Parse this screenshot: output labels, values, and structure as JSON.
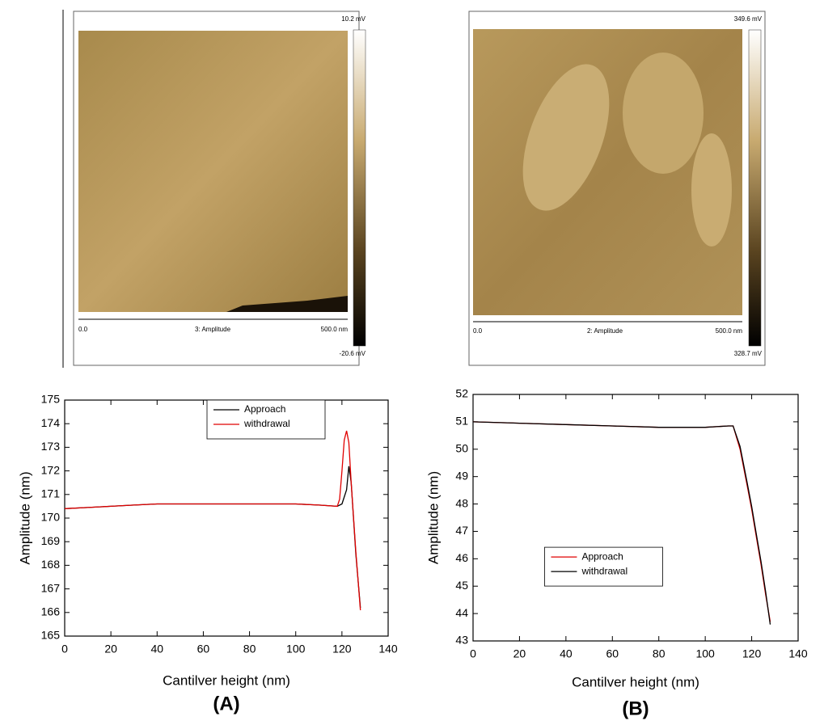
{
  "afm_images": [
    {
      "scale_max": "10.2 mV",
      "scale_min": "-20.6 mV",
      "x_start": "0.0",
      "channel": "3: Amplitude",
      "x_end": "500.0 nm"
    },
    {
      "scale_max": "349.6 mV",
      "scale_min": "328.7 mV",
      "x_start": "0.0",
      "channel": "2: Amplitude",
      "x_end": "500.0 nm"
    }
  ],
  "chart_data": [
    {
      "type": "line",
      "panel_label": "(A)",
      "xlabel": "Cantilver height (nm)",
      "ylabel": "Amplitude (nm)",
      "xlim": [
        0,
        140
      ],
      "xticks": [
        0,
        20,
        40,
        60,
        80,
        100,
        120,
        140
      ],
      "ylim": [
        165,
        175
      ],
      "yticks": [
        165,
        166,
        167,
        168,
        169,
        170,
        171,
        172,
        173,
        174,
        175
      ],
      "legend_position": "upper-center",
      "series": [
        {
          "name": "Approach",
          "color": "#000000",
          "x": [
            0,
            10,
            20,
            30,
            40,
            50,
            60,
            70,
            80,
            90,
            100,
            110,
            118,
            120,
            122,
            123,
            124,
            126,
            128
          ],
          "values": [
            170.4,
            170.45,
            170.5,
            170.55,
            170.6,
            170.6,
            170.6,
            170.6,
            170.6,
            170.6,
            170.6,
            170.55,
            170.5,
            170.6,
            171.2,
            172.2,
            171.5,
            168.5,
            166.2
          ]
        },
        {
          "name": "withdrawal",
          "color": "#e00000",
          "x": [
            0,
            10,
            20,
            30,
            40,
            50,
            60,
            70,
            80,
            90,
            100,
            110,
            118,
            119,
            120,
            121,
            122,
            123,
            124,
            126,
            128
          ],
          "values": [
            170.4,
            170.45,
            170.5,
            170.55,
            170.6,
            170.6,
            170.6,
            170.6,
            170.6,
            170.6,
            170.6,
            170.55,
            170.5,
            170.8,
            172.0,
            173.3,
            173.7,
            173.2,
            171.5,
            168.6,
            166.1
          ]
        }
      ]
    },
    {
      "type": "line",
      "panel_label": "(B)",
      "xlabel": "Cantilver height (nm)",
      "ylabel": "Amplitude (nm)",
      "xlim": [
        0,
        140
      ],
      "xticks": [
        0,
        20,
        40,
        60,
        80,
        100,
        120,
        140
      ],
      "ylim": [
        43,
        52
      ],
      "yticks": [
        43,
        44,
        45,
        46,
        47,
        48,
        49,
        50,
        51,
        52
      ],
      "legend_position": "center-left",
      "series": [
        {
          "name": "Approach",
          "color": "#e00000",
          "x": [
            0,
            20,
            40,
            60,
            80,
            100,
            110,
            112,
            115,
            118,
            120,
            122,
            124,
            126,
            128
          ],
          "values": [
            51.0,
            50.95,
            50.9,
            50.85,
            50.8,
            50.8,
            50.85,
            50.85,
            50.0,
            48.7,
            47.8,
            46.8,
            45.8,
            44.7,
            43.7
          ]
        },
        {
          "name": "withdrawal",
          "color": "#000000",
          "x": [
            0,
            20,
            40,
            60,
            80,
            100,
            110,
            112,
            115,
            118,
            120,
            122,
            124,
            126,
            128
          ],
          "values": [
            51.0,
            50.95,
            50.9,
            50.85,
            50.8,
            50.8,
            50.85,
            50.85,
            50.1,
            48.8,
            47.9,
            46.9,
            45.9,
            44.8,
            43.6
          ]
        }
      ]
    }
  ]
}
